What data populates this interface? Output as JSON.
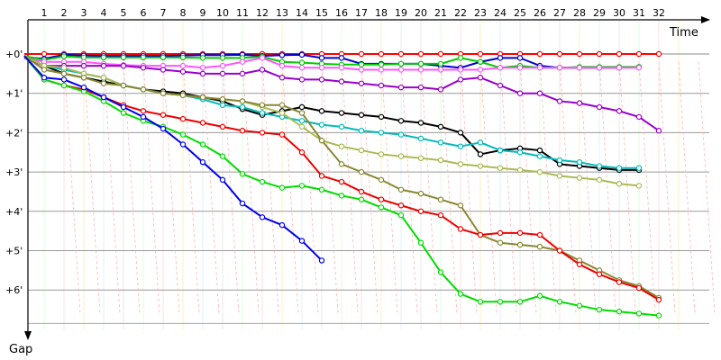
{
  "chart_data": {
    "type": "line",
    "title": "",
    "xlabel": "Time",
    "ylabel": "Gap",
    "xlim": [
      0,
      33
    ],
    "ylim": [
      0,
      7
    ],
    "x_ticks": [
      "1",
      "2",
      "3",
      "4",
      "5",
      "6",
      "7",
      "8",
      "9",
      "10",
      "11",
      "12",
      "13",
      "14",
      "15",
      "16",
      "17",
      "18",
      "19",
      "20",
      "21",
      "22",
      "23",
      "24",
      "25",
      "26",
      "27",
      "28",
      "29",
      "30",
      "31",
      "32"
    ],
    "y_ticks": [
      "+0'",
      "+1'",
      "+2'",
      "+3'",
      "+4'",
      "+5'",
      "+6'"
    ],
    "y_tick_values": [
      0,
      1,
      2,
      3,
      4,
      5,
      6
    ],
    "grid": true,
    "legend": "none",
    "series": [
      {
        "color": "#ff0000",
        "values": [
          0,
          0,
          0,
          0,
          0,
          0,
          0,
          0,
          0,
          0,
          0,
          0,
          0,
          0,
          0,
          0,
          0,
          0,
          0,
          0,
          0,
          0,
          0,
          0,
          0,
          0,
          0,
          0,
          0,
          0,
          0,
          0,
          0
        ]
      },
      {
        "color": "#0000cc",
        "values": [
          0.08,
          0.12,
          0.02,
          0.04,
          0.05,
          0.05,
          0.05,
          0.05,
          0.04,
          0.03,
          0.03,
          0.02,
          0.05,
          0.03,
          0.02,
          0.1,
          0.1,
          0.25,
          0.25,
          0.25,
          0.25,
          0.3,
          0.35,
          0.2,
          0.1,
          0.1,
          0.3,
          0.35,
          0.35,
          0.35,
          0.35,
          0.33
        ]
      },
      {
        "color": "#00cc00",
        "values": [
          0.05,
          0.15,
          0.06,
          0.09,
          0.09,
          0.09,
          0.09,
          0.09,
          0.09,
          0.1,
          0.1,
          0.1,
          0.07,
          0.2,
          0.22,
          0.25,
          0.27,
          0.27,
          0.27,
          0.25,
          0.25,
          0.25,
          0.1,
          0.2,
          0.35,
          0.3,
          0.35,
          0.35,
          0.33,
          0.33,
          0.33,
          0.33
        ]
      },
      {
        "color": "#ff55ff",
        "values": [
          0.1,
          0.2,
          0.2,
          0.2,
          0.25,
          0.28,
          0.3,
          0.3,
          0.3,
          0.35,
          0.3,
          0.2,
          0.1,
          0.3,
          0.35,
          0.35,
          0.35,
          0.4,
          0.4,
          0.4,
          0.4,
          0.4,
          0.4,
          0.4,
          0.35,
          0.35,
          0.35,
          0.35,
          0.35,
          0.35,
          0.35,
          0.35
        ]
      },
      {
        "color": "#9900cc",
        "values": [
          0.1,
          0.3,
          0.3,
          0.3,
          0.3,
          0.3,
          0.35,
          0.4,
          0.45,
          0.5,
          0.5,
          0.5,
          0.4,
          0.6,
          0.65,
          0.65,
          0.7,
          0.75,
          0.8,
          0.85,
          0.85,
          0.9,
          0.65,
          0.6,
          0.8,
          1.0,
          1.0,
          1.2,
          1.25,
          1.35,
          1.45,
          1.6,
          1.95
        ]
      },
      {
        "color": "#000000",
        "values": [
          0.05,
          0.3,
          0.5,
          0.6,
          0.7,
          0.8,
          0.9,
          0.95,
          1.0,
          1.1,
          1.2,
          1.4,
          1.55,
          1.45,
          1.35,
          1.45,
          1.5,
          1.55,
          1.6,
          1.7,
          1.75,
          1.85,
          2.0,
          2.55,
          2.45,
          2.4,
          2.45,
          2.8,
          2.85,
          2.9,
          2.95,
          2.95
        ]
      },
      {
        "color": "#00bbbb",
        "values": [
          0.05,
          0.3,
          0.4,
          0.5,
          0.6,
          0.8,
          0.9,
          1.0,
          1.05,
          1.15,
          1.3,
          1.35,
          1.5,
          1.6,
          1.7,
          1.8,
          1.85,
          1.95,
          2.0,
          2.05,
          2.15,
          2.25,
          2.35,
          2.25,
          2.45,
          2.5,
          2.6,
          2.7,
          2.75,
          2.85,
          2.9,
          2.9
        ]
      },
      {
        "color": "#aabb55",
        "values": [
          0.05,
          0.3,
          0.35,
          0.5,
          0.6,
          0.8,
          0.9,
          1.0,
          1.05,
          1.1,
          1.15,
          1.2,
          1.35,
          1.5,
          1.85,
          2.2,
          2.35,
          2.45,
          2.55,
          2.6,
          2.65,
          2.7,
          2.8,
          2.85,
          2.9,
          2.95,
          3.0,
          3.1,
          3.15,
          3.2,
          3.3,
          3.35
        ]
      },
      {
        "color": "#888833",
        "values": [
          0.05,
          0.4,
          0.5,
          0.6,
          0.75,
          0.8,
          0.9,
          1.0,
          1.05,
          1.1,
          1.15,
          1.2,
          1.3,
          1.3,
          1.5,
          2.2,
          2.8,
          3.0,
          3.2,
          3.45,
          3.55,
          3.7,
          3.85,
          4.6,
          4.8,
          4.85,
          4.9,
          5.0,
          5.25,
          5.5,
          5.75,
          5.9,
          6.2
        ]
      },
      {
        "color": "#ee0000",
        "values": [
          0.05,
          0.65,
          0.8,
          0.9,
          1.1,
          1.3,
          1.45,
          1.55,
          1.65,
          1.75,
          1.85,
          1.95,
          2.0,
          2.05,
          2.5,
          3.1,
          3.25,
          3.5,
          3.7,
          3.85,
          4.0,
          4.1,
          4.45,
          4.6,
          4.55,
          4.55,
          4.6,
          5.0,
          5.35,
          5.6,
          5.8,
          5.95,
          6.25
        ]
      },
      {
        "color": "#00dd00",
        "values": [
          0.05,
          0.65,
          0.8,
          0.95,
          1.2,
          1.5,
          1.7,
          1.85,
          2.05,
          2.3,
          2.6,
          3.05,
          3.25,
          3.4,
          3.35,
          3.45,
          3.6,
          3.7,
          3.9,
          4.1,
          4.8,
          5.55,
          6.1,
          6.3,
          6.3,
          6.3,
          6.15,
          6.3,
          6.4,
          6.5,
          6.55,
          6.6,
          6.65
        ]
      },
      {
        "color": "#0000ee",
        "values": [
          0.05,
          0.6,
          0.65,
          0.85,
          1.1,
          1.35,
          1.6,
          1.9,
          2.3,
          2.75,
          3.2,
          3.8,
          4.15,
          4.35,
          4.75,
          5.25
        ]
      }
    ]
  }
}
